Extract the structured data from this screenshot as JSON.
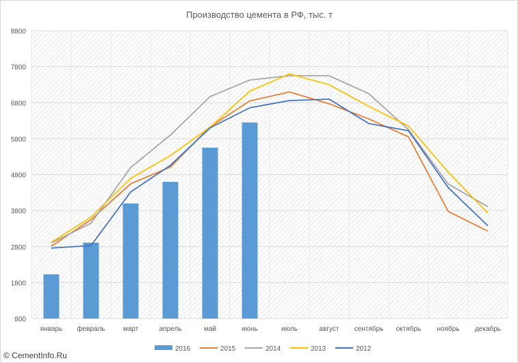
{
  "chart_data": {
    "type": "bar+line",
    "title": "Производство цемента в РФ, тыс. т",
    "ylim": [
      800,
      8800
    ],
    "yticks": [
      800,
      1800,
      2800,
      3800,
      4800,
      5800,
      6800,
      7800,
      8800
    ],
    "categories": [
      "январь",
      "февраль",
      "март",
      "апрель",
      "май",
      "июнь",
      "июль",
      "август",
      "сентябрь",
      "октябрь",
      "ноябрь",
      "декабрь"
    ],
    "grid": "hatched",
    "legend_position": "bottom",
    "bars": {
      "name": "2016",
      "color": "#5b9bd5",
      "values": [
        2030,
        2910,
        4000,
        4600,
        5550,
        6250,
        null,
        null,
        null,
        null,
        null,
        null
      ]
    },
    "series": [
      {
        "name": "2015",
        "color": "#ed7d31",
        "values": [
          2810,
          3550,
          4550,
          5010,
          6130,
          6850,
          7100,
          6770,
          6350,
          5850,
          3780,
          3230
        ]
      },
      {
        "name": "2014",
        "color": "#a5a5a5",
        "values": [
          2900,
          3450,
          5000,
          5900,
          6970,
          7430,
          7550,
          7550,
          7050,
          6050,
          4540,
          3910
        ]
      },
      {
        "name": "2013",
        "color": "#ffc000",
        "values": [
          2920,
          3620,
          4700,
          5330,
          6120,
          7120,
          7600,
          7300,
          6700,
          6150,
          4870,
          3730
        ]
      },
      {
        "name": "2012",
        "color": "#4472c4",
        "values": [
          2760,
          2830,
          4320,
          5060,
          6100,
          6660,
          6860,
          6900,
          6220,
          6020,
          4440,
          3380
        ]
      }
    ]
  },
  "watermark": "© CementInfo.Ru"
}
